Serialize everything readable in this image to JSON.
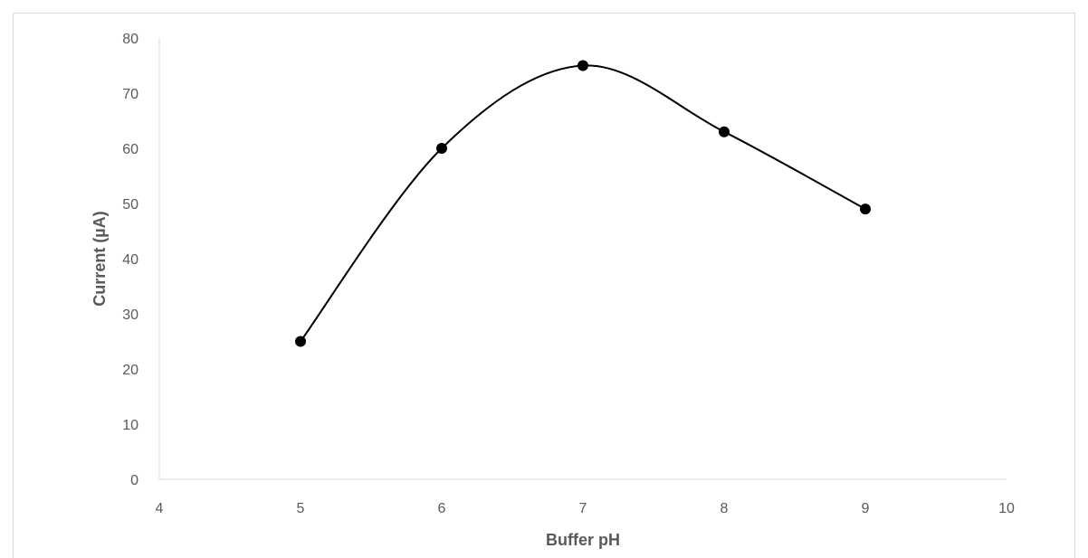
{
  "chart_data": {
    "type": "scatter",
    "title": "",
    "xlabel": "Buffer pH",
    "ylabel": "Current (µA)",
    "xlim": [
      4,
      10
    ],
    "ylim": [
      0,
      80
    ],
    "xticks": [
      4,
      5,
      6,
      7,
      8,
      9,
      10
    ],
    "yticks": [
      0,
      10,
      20,
      30,
      40,
      50,
      60,
      70,
      80
    ],
    "grid": false,
    "legend": "none",
    "smooth_line": true,
    "series": [
      {
        "x": [
          5,
          6,
          7,
          8,
          9
        ],
        "y": [
          25,
          60,
          75,
          63,
          49
        ],
        "color": "#000000",
        "marker": "circle"
      }
    ]
  }
}
